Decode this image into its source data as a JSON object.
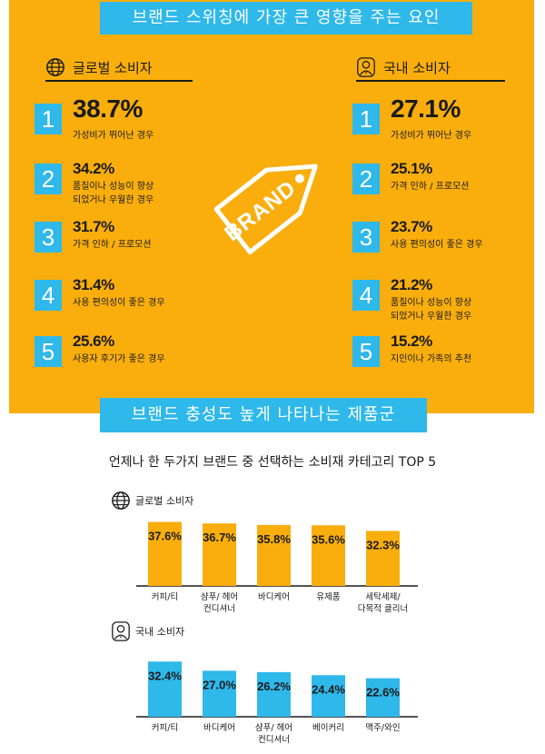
{
  "header": {
    "title": "브랜드 스위칭에 가장 큰 영향을 주는 요인"
  },
  "global": {
    "label": "글로벌 소비자",
    "items": [
      {
        "rank": "1",
        "percent": "38.7%",
        "desc": "가성비가 뛰어난 경우"
      },
      {
        "rank": "2",
        "percent": "34.2%",
        "desc": "품질이나 성능이 향상\n되었거나 우월한 경우"
      },
      {
        "rank": "3",
        "percent": "31.7%",
        "desc": "가격 인하 / 프로모션"
      },
      {
        "rank": "4",
        "percent": "31.4%",
        "desc": "사용 편의성이 좋은 경우"
      },
      {
        "rank": "5",
        "percent": "25.6%",
        "desc": "사용자 후기가 좋은 경우"
      }
    ]
  },
  "domestic": {
    "label": "국내 소비자",
    "items": [
      {
        "rank": "1",
        "percent": "27.1%",
        "desc": "가성비가 뛰어난 경우"
      },
      {
        "rank": "2",
        "percent": "25.1%",
        "desc": "가격 인하 / 프로모션"
      },
      {
        "rank": "3",
        "percent": "23.7%",
        "desc": "사용 편의성이 좋은 경우"
      },
      {
        "rank": "4",
        "percent": "21.2%",
        "desc": "품질이나 성능이 향상\n되었거나 우월한 경우"
      },
      {
        "rank": "5",
        "percent": "15.2%",
        "desc": "지인이나 가족의 추천"
      }
    ]
  },
  "brand_tag": {
    "text": "BRAND"
  },
  "section2": {
    "title": "브랜드 충성도 높게 나타나는 제품군"
  },
  "chart_title": "언제나 한 두가지 브랜드 중 선택하는 소비재 카테고리 TOP 5",
  "colors": {
    "orange": "#f9ae0d",
    "blue": "#2fb8ea"
  },
  "chart_data": [
    {
      "type": "bar",
      "title": "언제나 한 두가지 브랜드 중 선택하는 소비재 카테고리 TOP 5",
      "series_label": "글로벌 소비자",
      "categories": [
        "커피/티",
        "샴푸/ 헤어\n컨디셔너",
        "바디케어",
        "유제품",
        "세탁세제/\n다목적 클리너"
      ],
      "values": [
        37.6,
        36.7,
        35.8,
        35.6,
        32.3
      ],
      "value_labels": [
        "37.6%",
        "36.7%",
        "35.8%",
        "35.6%",
        "32.3%"
      ],
      "color": "#f9ae0d",
      "ylim": [
        0,
        40
      ]
    },
    {
      "type": "bar",
      "series_label": "국내 소비자",
      "categories": [
        "커피/티",
        "바디케어",
        "샴푸/ 헤어\n컨디셔너",
        "베이커리",
        "맥주/와인"
      ],
      "values": [
        32.4,
        27.0,
        26.2,
        24.4,
        22.6
      ],
      "value_labels": [
        "32.4%",
        "27.0%",
        "26.2%",
        "24.4%",
        "22.6%"
      ],
      "color": "#2fb8ea",
      "ylim": [
        0,
        40
      ]
    }
  ]
}
